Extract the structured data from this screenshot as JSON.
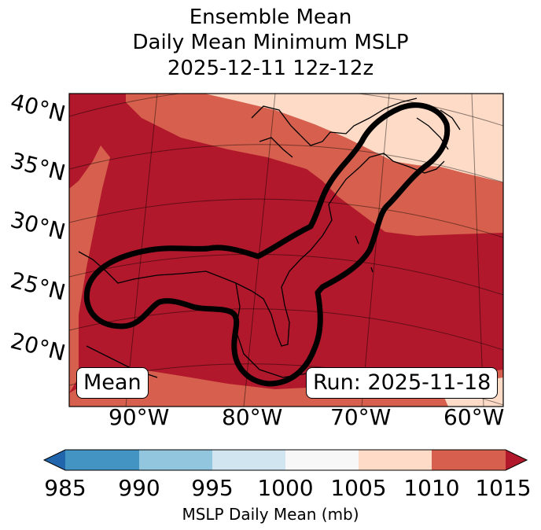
{
  "title": {
    "line1": "Ensemble Mean",
    "line2": "Daily Mean Minimum MSLP",
    "line3": "2025-12-11 12z-12z"
  },
  "map": {
    "lat_labels": [
      "40°N",
      "35°N",
      "30°N",
      "25°N",
      "20°N"
    ],
    "lon_labels": [
      "90°W",
      "80°W",
      "70°W",
      "60°W"
    ],
    "mean_label": "Mean",
    "run_label": "Run: 2025-11-18",
    "colors": {
      "band_1005_1010": "#fddbc7",
      "band_1010_1015": "#d6604d",
      "band_above_1015": "#b2182b",
      "contour": "#000000"
    }
  },
  "colorbar": {
    "ticks": [
      "985",
      "990",
      "995",
      "1000",
      "1005",
      "1010",
      "1015"
    ],
    "label": "MSLP Daily Mean (mb)",
    "colors": [
      "#2166ac",
      "#4393c3",
      "#92c5de",
      "#d1e5f0",
      "#f7f7f7",
      "#fddbc7",
      "#d6604d",
      "#b2182b"
    ]
  }
}
